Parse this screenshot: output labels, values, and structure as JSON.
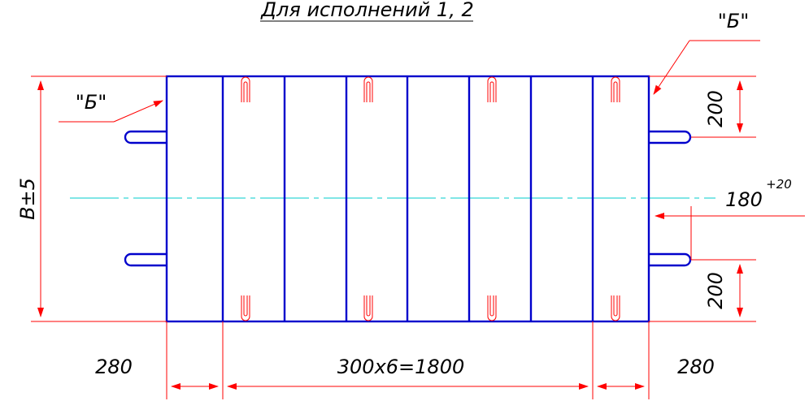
{
  "title": "Для исполнений 1, 2",
  "view_marker_left": "\"Б\"",
  "view_marker_right": "\"Б\"",
  "dim_height_total": "B±5",
  "dim_top_offset": "200",
  "dim_bottom_offset": "200",
  "dim_center_value": "180",
  "dim_center_tolerance": "+20",
  "dim_left_width": "280",
  "dim_middle_width": "300х6=1800",
  "dim_right_width": "280",
  "colors": {
    "outline": "#0000cc",
    "dimension": "#ff0000",
    "axis": "#00cccc",
    "text": "#000000"
  }
}
